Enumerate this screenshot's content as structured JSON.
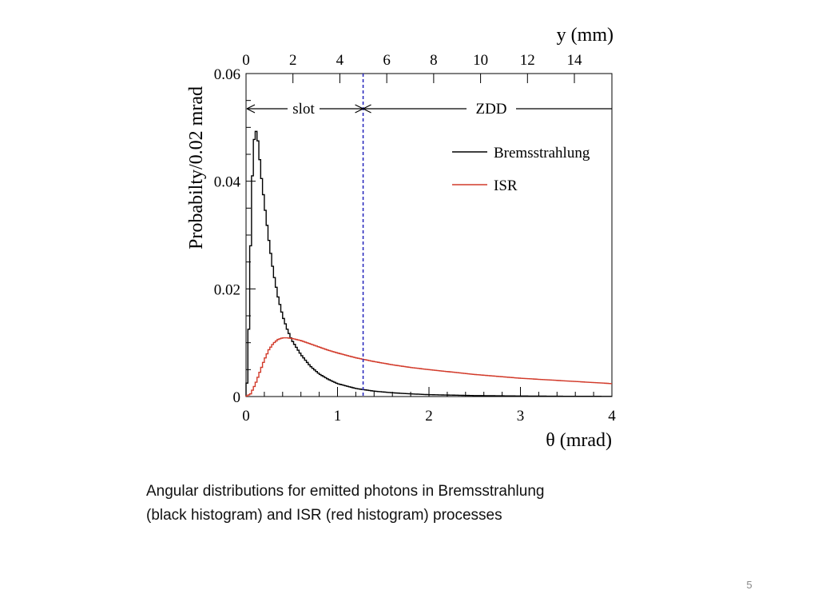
{
  "caption": {
    "line1": "Angular distributions for emitted photons in Bremsstrahlung",
    "line2": "(black histogram) and ISR (red histogram) processes"
  },
  "page_number": "5",
  "chart_data": {
    "type": "line",
    "style": "step-histogram",
    "xlabel": "θ (mrad)",
    "ylabel": "Probabilty/0.02 mrad",
    "xlim": [
      0,
      4
    ],
    "ylim": [
      0,
      0.06
    ],
    "x_ticks": [
      "0",
      "1",
      "2",
      "3",
      "4"
    ],
    "y_ticks": [
      "0",
      "0.02",
      "0.04",
      "0.06"
    ],
    "x_tick_values": [
      0,
      1,
      2,
      3,
      4
    ],
    "y_tick_values": [
      0,
      0.02,
      0.04,
      0.06
    ],
    "top_axis": {
      "label": "y (mm)",
      "ticks": [
        "0",
        "2",
        "4",
        "6",
        "8",
        "10",
        "12",
        "14"
      ],
      "tick_positions_mrad": [
        0,
        0.5128,
        1.0256,
        1.5385,
        2.0513,
        2.5641,
        3.0769,
        3.5897
      ]
    },
    "boundary_x": 1.28,
    "boundary_color": "#2222bb",
    "region_labels": {
      "left": "slot",
      "right": "ZDD"
    },
    "legend_position": "top-right",
    "grid": false,
    "series": [
      {
        "name": "Bremsstrahlung",
        "color": "#000000",
        "x": [
          0,
          0.02,
          0.04,
          0.06,
          0.08,
          0.1,
          0.12,
          0.14,
          0.16,
          0.2,
          0.25,
          0.3,
          0.35,
          0.4,
          0.45,
          0.5,
          0.6,
          0.7,
          0.8,
          0.9,
          1.0,
          1.2,
          1.4,
          1.6,
          1.8,
          2.0,
          2.5,
          3.0,
          3.5,
          4.0
        ],
        "values": [
          0,
          0.005,
          0.02,
          0.036,
          0.046,
          0.0495,
          0.049,
          0.046,
          0.042,
          0.036,
          0.029,
          0.023,
          0.0185,
          0.015,
          0.0125,
          0.0105,
          0.0078,
          0.0057,
          0.0042,
          0.0032,
          0.0024,
          0.0015,
          0.001,
          0.0007,
          0.0005,
          0.00035,
          0.00018,
          0.0001,
          5e-05,
          3e-05
        ]
      },
      {
        "name": "ISR",
        "color": "#d23a2a",
        "x": [
          0,
          0.05,
          0.1,
          0.15,
          0.2,
          0.25,
          0.3,
          0.35,
          0.4,
          0.45,
          0.5,
          0.55,
          0.6,
          0.7,
          0.8,
          0.9,
          1.0,
          1.2,
          1.4,
          1.6,
          1.8,
          2.0,
          2.5,
          3.0,
          3.5,
          4.0
        ],
        "values": [
          0,
          0.0005,
          0.0022,
          0.0045,
          0.0068,
          0.0087,
          0.0099,
          0.0106,
          0.0109,
          0.0109,
          0.0108,
          0.0106,
          0.0104,
          0.0098,
          0.0092,
          0.0086,
          0.0081,
          0.0072,
          0.0065,
          0.0059,
          0.0054,
          0.005,
          0.0041,
          0.0034,
          0.0029,
          0.0024
        ]
      }
    ]
  }
}
